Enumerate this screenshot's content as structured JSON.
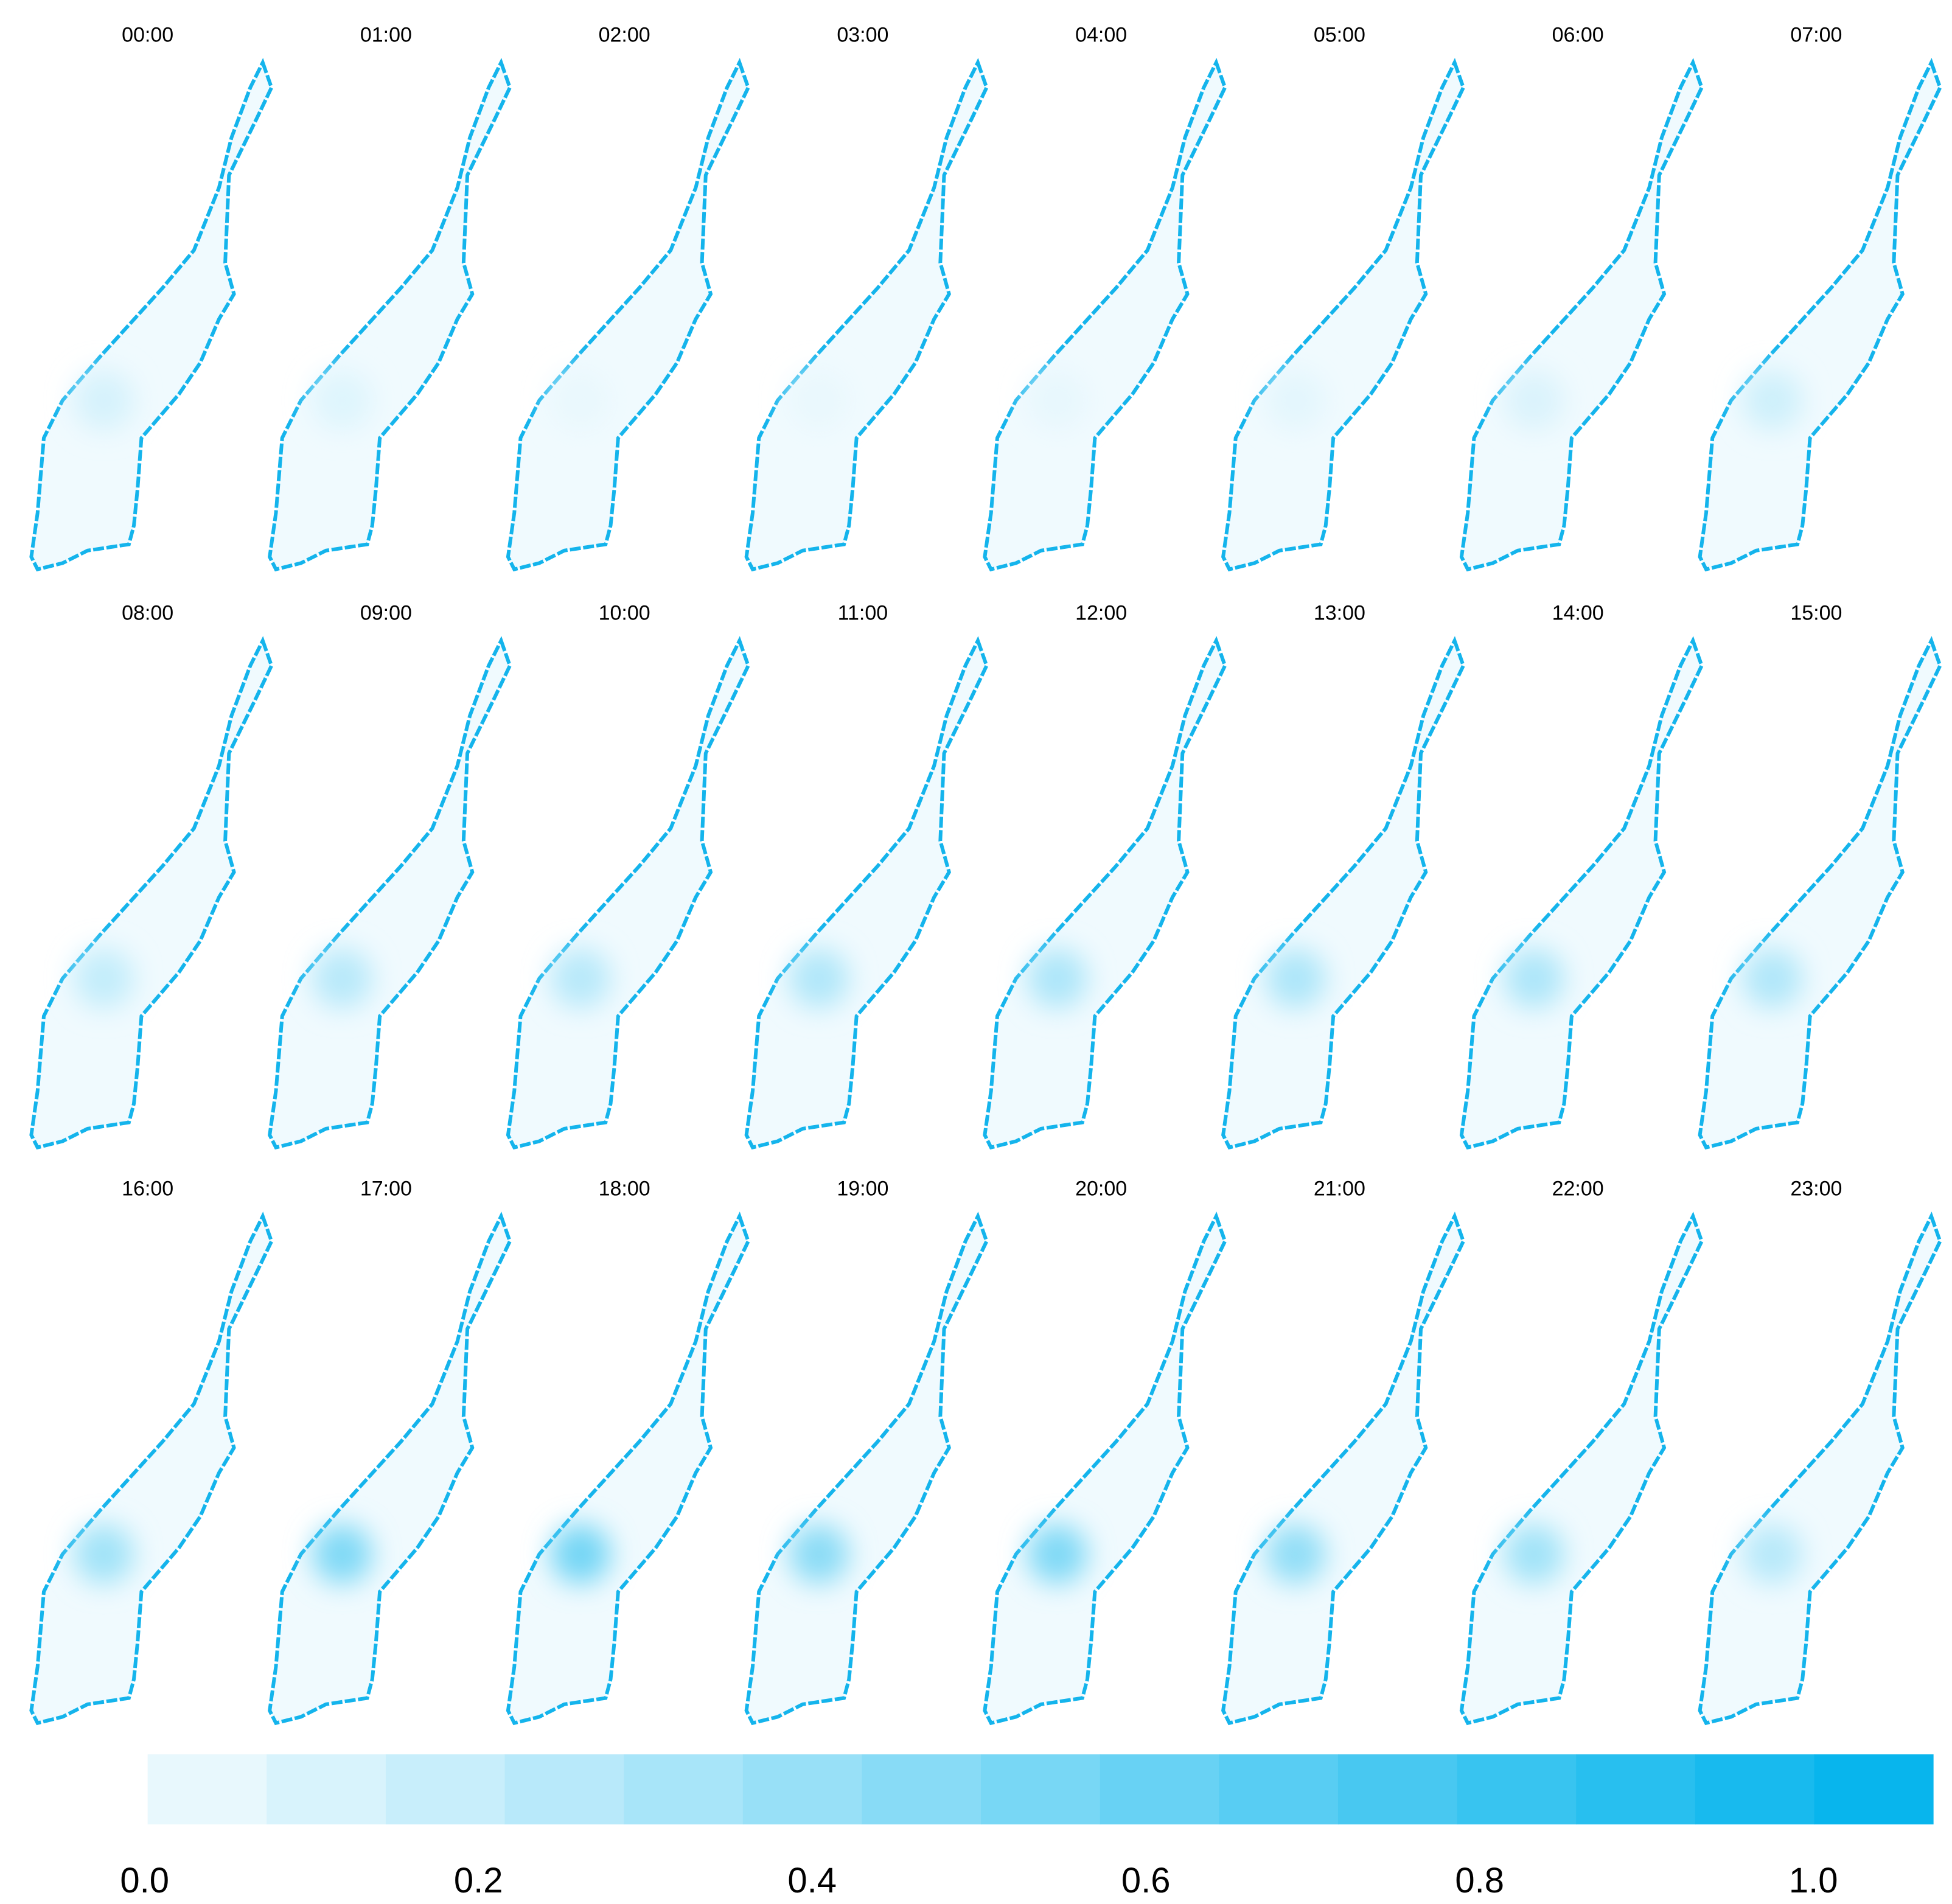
{
  "panels": [
    {
      "label": "00:00",
      "peak": 0.12
    },
    {
      "label": "01:00",
      "peak": 0.08
    },
    {
      "label": "02:00",
      "peak": 0.03
    },
    {
      "label": "03:00",
      "peak": 0.03
    },
    {
      "label": "04:00",
      "peak": 0.04
    },
    {
      "label": "05:00",
      "peak": 0.06
    },
    {
      "label": "06:00",
      "peak": 0.1
    },
    {
      "label": "07:00",
      "peak": 0.15
    },
    {
      "label": "08:00",
      "peak": 0.2
    },
    {
      "label": "09:00",
      "peak": 0.25
    },
    {
      "label": "10:00",
      "peak": 0.25
    },
    {
      "label": "11:00",
      "peak": 0.28
    },
    {
      "label": "12:00",
      "peak": 0.3
    },
    {
      "label": "13:00",
      "peak": 0.3
    },
    {
      "label": "14:00",
      "peak": 0.3
    },
    {
      "label": "15:00",
      "peak": 0.28
    },
    {
      "label": "16:00",
      "peak": 0.35
    },
    {
      "label": "17:00",
      "peak": 0.5
    },
    {
      "label": "18:00",
      "peak": 0.55
    },
    {
      "label": "19:00",
      "peak": 0.45
    },
    {
      "label": "20:00",
      "peak": 0.5
    },
    {
      "label": "21:00",
      "peak": 0.42
    },
    {
      "label": "22:00",
      "peak": 0.35
    },
    {
      "label": "23:00",
      "peak": 0.25
    }
  ],
  "colorbar": {
    "low": "#f0fafe",
    "high": "#00b3ec",
    "steps": 15,
    "lim": [
      0,
      1.07
    ],
    "ticks": [
      {
        "value": 0,
        "label": "0.0"
      },
      {
        "value": 0.2,
        "label": "0.2"
      },
      {
        "value": 0.4,
        "label": "0.4"
      },
      {
        "value": 0.6,
        "label": "0.6"
      },
      {
        "value": 0.8,
        "label": "0.8"
      },
      {
        "value": 1,
        "label": "1.0"
      }
    ]
  },
  "outline_color": "#14b4ec"
}
